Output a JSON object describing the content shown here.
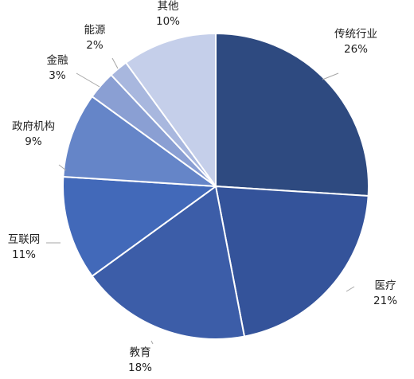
{
  "chart_data": {
    "type": "pie",
    "title": "",
    "slices": [
      {
        "label": "传统行业",
        "value": 26,
        "percent_label": "26%",
        "color": "#2E4A80"
      },
      {
        "label": "医疗",
        "value": 21,
        "percent_label": "21%",
        "color": "#34539A"
      },
      {
        "label": "教育",
        "value": 18,
        "percent_label": "18%",
        "color": "#3C5DA8"
      },
      {
        "label": "互联网",
        "value": 11,
        "percent_label": "11%",
        "color": "#4269B9"
      },
      {
        "label": "政府机构",
        "value": 9,
        "percent_label": "9%",
        "color": "#6585C8"
      },
      {
        "label": "金融",
        "value": 3,
        "percent_label": "3%",
        "color": "#8A9FD3"
      },
      {
        "label": "能源",
        "value": 2,
        "percent_label": "2%",
        "color": "#A8B7DE"
      },
      {
        "label": "其他",
        "value": 10,
        "percent_label": "10%",
        "color": "#C5CFEA"
      }
    ],
    "start": "12 o'clock",
    "direction": "clockwise",
    "legend": "none",
    "labels": "outside with leader lines"
  }
}
